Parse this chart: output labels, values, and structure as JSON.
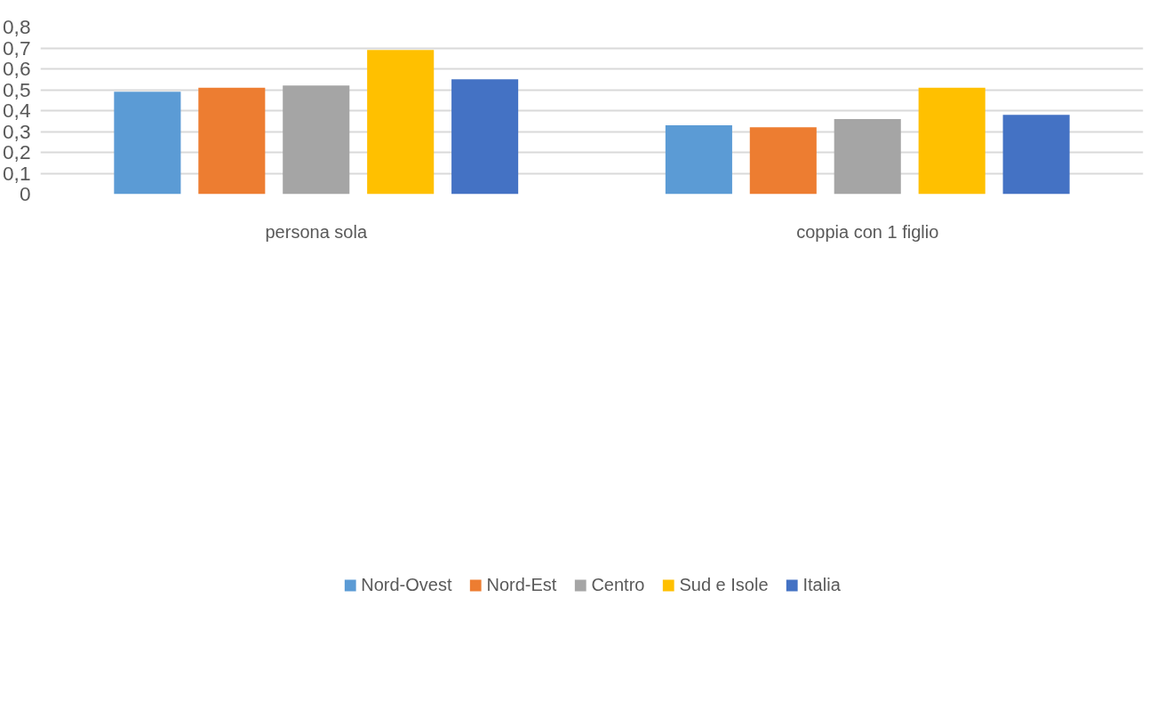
{
  "chart_data": {
    "type": "bar",
    "categories": [
      "persona sola",
      "coppia con 1 figlio"
    ],
    "series": [
      {
        "name": "Nord-Ovest",
        "color": "#5b9bd5",
        "values": [
          0.49,
          0.33
        ]
      },
      {
        "name": "Nord-Est",
        "color": "#ed7d31",
        "values": [
          0.51,
          0.32
        ]
      },
      {
        "name": "Centro",
        "color": "#a5a5a5",
        "values": [
          0.52,
          0.36
        ]
      },
      {
        "name": "Sud e Isole",
        "color": "#ffc000",
        "values": [
          0.69,
          0.51
        ]
      },
      {
        "name": "Italia",
        "color": "#4472c4",
        "values": [
          0.55,
          0.38
        ]
      }
    ],
    "ylim": [
      0,
      0.8
    ],
    "yticks": [
      {
        "value": 0,
        "label": "0"
      },
      {
        "value": 0.1,
        "label": "0,1"
      },
      {
        "value": 0.2,
        "label": "0,2"
      },
      {
        "value": 0.3,
        "label": "0,3"
      },
      {
        "value": 0.4,
        "label": "0,4"
      },
      {
        "value": 0.5,
        "label": "0,5"
      },
      {
        "value": 0.6,
        "label": "0,6"
      },
      {
        "value": 0.7,
        "label": "0,7"
      },
      {
        "value": 0.8,
        "label": "0,8"
      }
    ],
    "grid": "y",
    "legend": "bottom"
  }
}
